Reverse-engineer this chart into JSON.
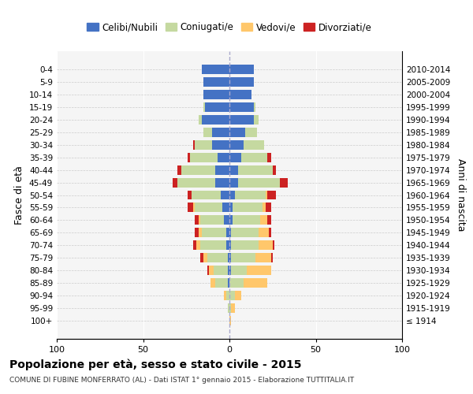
{
  "age_groups": [
    "100+",
    "95-99",
    "90-94",
    "85-89",
    "80-84",
    "75-79",
    "70-74",
    "65-69",
    "60-64",
    "55-59",
    "50-54",
    "45-49",
    "40-44",
    "35-39",
    "30-34",
    "25-29",
    "20-24",
    "15-19",
    "10-14",
    "5-9",
    "0-4"
  ],
  "birth_years": [
    "≤ 1914",
    "1915-1919",
    "1920-1924",
    "1925-1929",
    "1930-1934",
    "1935-1939",
    "1940-1944",
    "1945-1949",
    "1950-1954",
    "1955-1959",
    "1960-1964",
    "1965-1969",
    "1970-1974",
    "1975-1979",
    "1980-1984",
    "1985-1989",
    "1990-1994",
    "1995-1999",
    "2000-2004",
    "2005-2009",
    "2010-2014"
  ],
  "colors": {
    "celibi": "#4472c4",
    "coniugati": "#c5d9a0",
    "vedovi": "#ffc76b",
    "divorziati": "#cc2222"
  },
  "males": {
    "celibi": [
      0,
      0,
      0,
      1,
      1,
      1,
      2,
      2,
      3,
      4,
      5,
      8,
      8,
      7,
      10,
      10,
      16,
      14,
      15,
      15,
      16
    ],
    "coniugati": [
      0,
      1,
      2,
      7,
      8,
      12,
      15,
      14,
      14,
      16,
      17,
      22,
      20,
      16,
      10,
      5,
      2,
      1,
      0,
      0,
      0
    ],
    "vedovi": [
      0,
      0,
      1,
      3,
      3,
      2,
      2,
      2,
      1,
      1,
      0,
      0,
      0,
      0,
      0,
      0,
      0,
      0,
      0,
      0,
      0
    ],
    "divorziati": [
      0,
      0,
      0,
      0,
      1,
      2,
      2,
      2,
      2,
      3,
      2,
      3,
      2,
      1,
      1,
      0,
      0,
      0,
      0,
      0,
      0
    ]
  },
  "females": {
    "celibi": [
      0,
      0,
      0,
      0,
      1,
      1,
      1,
      1,
      2,
      2,
      3,
      5,
      5,
      7,
      8,
      9,
      14,
      14,
      13,
      14,
      14
    ],
    "coniugati": [
      0,
      1,
      3,
      8,
      9,
      14,
      16,
      16,
      16,
      17,
      18,
      24,
      20,
      15,
      12,
      7,
      3,
      1,
      0,
      0,
      0
    ],
    "vedovi": [
      1,
      2,
      4,
      14,
      14,
      9,
      8,
      6,
      4,
      2,
      1,
      0,
      0,
      0,
      0,
      0,
      0,
      0,
      0,
      0,
      0
    ],
    "divorziati": [
      0,
      0,
      0,
      0,
      0,
      1,
      1,
      1,
      2,
      3,
      5,
      5,
      2,
      2,
      0,
      0,
      0,
      0,
      0,
      0,
      0
    ]
  },
  "title": "Popolazione per età, sesso e stato civile - 2015",
  "subtitle": "COMUNE DI FUBINE MONFERRATO (AL) - Dati ISTAT 1° gennaio 2015 - Elaborazione TUTTITALIA.IT",
  "ylabel_left": "Fasce di età",
  "ylabel_right": "Anni di nascita",
  "xlim": 100,
  "legend_labels": [
    "Celibi/Nubili",
    "Coniugati/e",
    "Vedovi/e",
    "Divorziati/e"
  ],
  "background_color": "#ffffff"
}
